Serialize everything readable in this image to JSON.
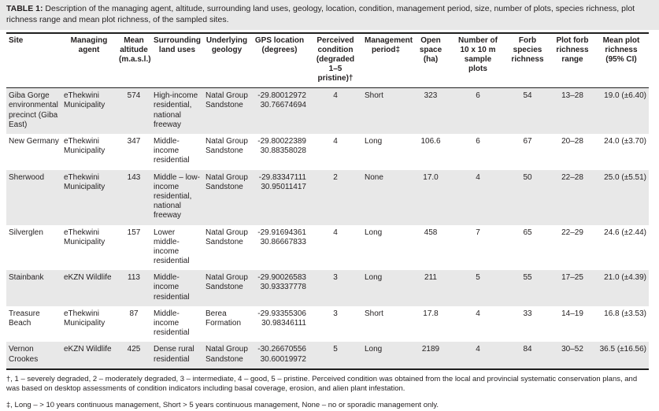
{
  "caption": {
    "label": "TABLE 1:",
    "text": "Description of the managing agent, altitude, surrounding land uses, geology, location, condition, management period, size, number of plots, species richness, plot richness range and mean plot richness, of the sampled sites."
  },
  "table": {
    "headers": [
      "Site",
      "Managing agent",
      "Mean altitude (m.a.s.l.)",
      "Surrounding land uses",
      "Underlying geology",
      "GPS location (degrees)",
      "Perceived condition (degraded 1–5 pristine)†",
      "Management period‡",
      "Open space (ha)",
      "Number of 10 x 10 m sample plots",
      "Forb species richness",
      "Plot forb richness range",
      "Mean plot richness (95% CI)"
    ],
    "rows": [
      {
        "site": "Giba Gorge environmental precinct (Giba East)",
        "agent": "eThekwini Municipality",
        "altitude": "574",
        "land_uses": "High-income residential, national freeway",
        "geology": "Natal Group Sandstone",
        "gps_lat": "-29.80012972",
        "gps_lon": "30.76674694",
        "condition": "4",
        "period": "Short",
        "open_space": "323",
        "plots": "6",
        "forb_richness": "54",
        "richness_range": "13–28",
        "mean_richness": "19.0 (±6.40)"
      },
      {
        "site": "New Germany",
        "agent": "eThekwini Municipality",
        "altitude": "347",
        "land_uses": "Middle-income residential",
        "geology": "Natal Group Sandstone",
        "gps_lat": "-29.80022389",
        "gps_lon": "30.88358028",
        "condition": "4",
        "period": "Long",
        "open_space": "106.6",
        "plots": "6",
        "forb_richness": "67",
        "richness_range": "20–28",
        "mean_richness": "24.0 (±3.70)"
      },
      {
        "site": "Sherwood",
        "agent": "eThekwini Municipality",
        "altitude": "143",
        "land_uses": "Middle – low-income residential, national freeway",
        "geology": "Natal Group Sandstone",
        "gps_lat": "-29.83347111",
        "gps_lon": "30.95011417",
        "condition": "2",
        "period": "None",
        "open_space": "17.0",
        "plots": "4",
        "forb_richness": "50",
        "richness_range": "22–28",
        "mean_richness": "25.0 (±5.51)"
      },
      {
        "site": "Silverglen",
        "agent": "eThekwini Municipality",
        "altitude": "157",
        "land_uses": "Lower middle-income residential",
        "geology": "Natal Group Sandstone",
        "gps_lat": "-29.91694361",
        "gps_lon": "30.86667833",
        "condition": "4",
        "period": "Long",
        "open_space": "458",
        "plots": "7",
        "forb_richness": "65",
        "richness_range": "22–29",
        "mean_richness": "24.6 (±2.44)"
      },
      {
        "site": "Stainbank",
        "agent": "eKZN Wildlife",
        "altitude": "113",
        "land_uses": "Middle-income residential",
        "geology": "Natal Group Sandstone",
        "gps_lat": "-29.90026583",
        "gps_lon": "30.93337778",
        "condition": "3",
        "period": "Long",
        "open_space": "211",
        "plots": "5",
        "forb_richness": "55",
        "richness_range": "17–25",
        "mean_richness": "21.0 (±4.39)"
      },
      {
        "site": "Treasure Beach",
        "agent": "eThekwini Municipality",
        "altitude": "87",
        "land_uses": "Middle-income residential",
        "geology": "Berea Formation",
        "gps_lat": "-29.93355306",
        "gps_lon": "30.98346111",
        "condition": "3",
        "period": "Short",
        "open_space": "17.8",
        "plots": "4",
        "forb_richness": "33",
        "richness_range": "14–19",
        "mean_richness": "16.8 (±3.53)"
      },
      {
        "site": "Vernon Crookes",
        "agent": "eKZN Wildlife",
        "altitude": "425",
        "land_uses": "Dense rural residential",
        "geology": "Natal Group Sandstone",
        "gps_lat": "-30.26670556",
        "gps_lon": "30.60019972",
        "condition": "5",
        "period": "Long",
        "open_space": "2189",
        "plots": "4",
        "forb_richness": "84",
        "richness_range": "30–52",
        "mean_richness": "36.5 (±16.56)"
      }
    ]
  },
  "footnotes": [
    "†, 1 – severely degraded, 2 – moderately degraded, 3 – intermediate, 4 – good, 5 – pristine. Perceived condition was obtained from the local and provincial systematic conservation plans, and was based on desktop assessments of condition indicators including basal coverage, erosion, and alien plant infestation.",
    "‡, Long – > 10 years continuous management, Short > 5 years continuous management, None – no or sporadic management only."
  ],
  "colors": {
    "row_shade": "#e8e8e8",
    "caption_background": "#e8e8e8",
    "rule": "#1f1f1f"
  }
}
